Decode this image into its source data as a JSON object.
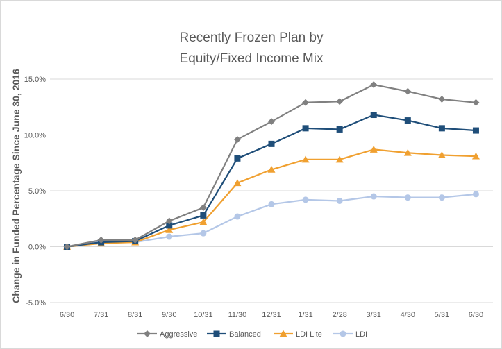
{
  "chart_data": {
    "type": "line",
    "title_lines": [
      "Recently Frozen Plan by",
      "Equity/Fixed Income Mix"
    ],
    "ylabel": "Change in Funded Percentage Since June 30, 2016",
    "xlabel": "",
    "categories": [
      "6/30",
      "7/31",
      "8/31",
      "9/30",
      "10/31",
      "11/30",
      "12/31",
      "1/31",
      "2/28",
      "3/31",
      "4/30",
      "5/31",
      "6/30"
    ],
    "ylim": [
      -5.0,
      15.0
    ],
    "yticks": [
      -5.0,
      0.0,
      5.0,
      10.0,
      15.0
    ],
    "ytick_labels": [
      "-5.0%",
      "0.0%",
      "5.0%",
      "10.0%",
      "15.0%"
    ],
    "grid": "horizontal",
    "legend_position": "bottom",
    "series": [
      {
        "name": "Aggressive",
        "color": "#808080",
        "marker": "diamond",
        "values": [
          0.0,
          0.6,
          0.6,
          2.3,
          3.5,
          9.6,
          11.2,
          12.9,
          13.0,
          14.5,
          13.9,
          13.2,
          12.9
        ]
      },
      {
        "name": "Balanced",
        "color": "#1f4e79",
        "marker": "square",
        "values": [
          0.0,
          0.4,
          0.5,
          1.9,
          2.8,
          7.9,
          9.2,
          10.6,
          10.5,
          11.8,
          11.3,
          10.6,
          10.4
        ]
      },
      {
        "name": "LDI Lite",
        "color": "#f0a030",
        "marker": "triangle",
        "values": [
          0.0,
          0.3,
          0.4,
          1.5,
          2.2,
          5.7,
          6.9,
          7.8,
          7.8,
          8.7,
          8.4,
          8.2,
          8.1
        ]
      },
      {
        "name": "LDI",
        "color": "#b4c7e7",
        "marker": "circle",
        "values": [
          0.0,
          0.5,
          0.4,
          0.9,
          1.2,
          2.7,
          3.8,
          4.2,
          4.1,
          4.5,
          4.4,
          4.4,
          4.7
        ]
      }
    ]
  }
}
